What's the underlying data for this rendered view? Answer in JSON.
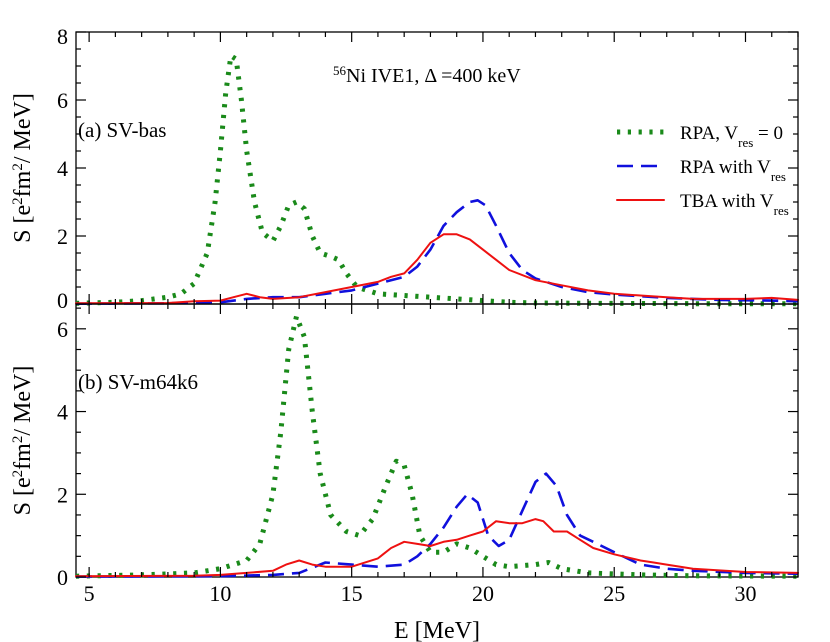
{
  "chart_data": [
    {
      "type": "line",
      "panel_label": "(a)  SV-bas",
      "title_super": "56",
      "title": "Ni  IVE1,  Δ =400 keV",
      "ylabel_parts": [
        "S [e",
        "2",
        "fm",
        "2",
        "/ MeV]"
      ],
      "xlim": [
        4.5,
        32
      ],
      "ylim": [
        0,
        8
      ],
      "yticks": [
        "0",
        "2",
        "4",
        "6",
        "8"
      ],
      "legend_position": "top-right",
      "legend": [
        {
          "base": "RPA, V",
          "sub": "res",
          "suffix": " = 0"
        },
        {
          "base": "RPA with V",
          "sub": "res",
          "suffix": ""
        },
        {
          "base": "TBA with V",
          "sub": "res",
          "suffix": ""
        }
      ],
      "series": [
        {
          "name": "RPA, Vres = 0",
          "color": "#1a8a1a",
          "style": "dotted",
          "points": [
            [
              4.5,
              0.02
            ],
            [
              6,
              0.05
            ],
            [
              7,
              0.1
            ],
            [
              8,
              0.2
            ],
            [
              8.5,
              0.3
            ],
            [
              9,
              0.6
            ],
            [
              9.5,
              1.5
            ],
            [
              9.8,
              3
            ],
            [
              10,
              4.5
            ],
            [
              10.2,
              6.2
            ],
            [
              10.4,
              7.3
            ],
            [
              10.6,
              7.2
            ],
            [
              10.8,
              6
            ],
            [
              11,
              4.5
            ],
            [
              11.3,
              3
            ],
            [
              11.6,
              2.1
            ],
            [
              12,
              1.85
            ],
            [
              12.3,
              2.3
            ],
            [
              12.6,
              2.9
            ],
            [
              12.9,
              3.0
            ],
            [
              13.2,
              2.8
            ],
            [
              13.5,
              2.0
            ],
            [
              13.8,
              1.5
            ],
            [
              14.2,
              1.4
            ],
            [
              14.5,
              1.3
            ],
            [
              14.8,
              0.9
            ],
            [
              15.2,
              0.5
            ],
            [
              15.6,
              0.4
            ],
            [
              16,
              0.3
            ],
            [
              17,
              0.25
            ],
            [
              18,
              0.2
            ],
            [
              19,
              0.15
            ],
            [
              20,
              0.1
            ],
            [
              21,
              0.05
            ],
            [
              22,
              0.03
            ],
            [
              24,
              0.02
            ],
            [
              28,
              0.01
            ],
            [
              32,
              0.01
            ]
          ]
        },
        {
          "name": "RPA with Vres",
          "color": "#1010dd",
          "style": "dashed",
          "points": [
            [
              4.5,
              0.01
            ],
            [
              8,
              0.02
            ],
            [
              10,
              0.05
            ],
            [
              11,
              0.15
            ],
            [
              12,
              0.2
            ],
            [
              13,
              0.2
            ],
            [
              14,
              0.3
            ],
            [
              15,
              0.4
            ],
            [
              16,
              0.6
            ],
            [
              17,
              0.8
            ],
            [
              17.5,
              1.1
            ],
            [
              18,
              1.6
            ],
            [
              18.5,
              2.3
            ],
            [
              19,
              2.7
            ],
            [
              19.5,
              3.0
            ],
            [
              19.8,
              3.05
            ],
            [
              20.1,
              2.9
            ],
            [
              20.5,
              2.3
            ],
            [
              21,
              1.5
            ],
            [
              21.5,
              1.0
            ],
            [
              22,
              0.75
            ],
            [
              23,
              0.5
            ],
            [
              24,
              0.35
            ],
            [
              25,
              0.28
            ],
            [
              27,
              0.18
            ],
            [
              29,
              0.12
            ],
            [
              31,
              0.1
            ],
            [
              32,
              0.08
            ]
          ]
        },
        {
          "name": "TBA with Vres",
          "color": "#ee1111",
          "style": "solid",
          "points": [
            [
              4.5,
              0.02
            ],
            [
              8,
              0.03
            ],
            [
              9,
              0.08
            ],
            [
              10,
              0.1
            ],
            [
              10.5,
              0.2
            ],
            [
              11,
              0.3
            ],
            [
              11.5,
              0.2
            ],
            [
              12,
              0.15
            ],
            [
              13,
              0.2
            ],
            [
              14,
              0.35
            ],
            [
              15,
              0.5
            ],
            [
              16,
              0.65
            ],
            [
              16.5,
              0.8
            ],
            [
              17,
              0.9
            ],
            [
              17.5,
              1.3
            ],
            [
              18,
              1.8
            ],
            [
              18.5,
              2.05
            ],
            [
              19,
              2.05
            ],
            [
              19.5,
              1.9
            ],
            [
              20,
              1.6
            ],
            [
              20.5,
              1.3
            ],
            [
              21,
              1.0
            ],
            [
              22,
              0.7
            ],
            [
              23,
              0.55
            ],
            [
              24,
              0.4
            ],
            [
              25,
              0.3
            ],
            [
              26,
              0.25
            ],
            [
              27,
              0.2
            ],
            [
              28,
              0.15
            ],
            [
              29,
              0.15
            ],
            [
              30,
              0.15
            ],
            [
              31,
              0.18
            ],
            [
              32,
              0.12
            ]
          ]
        }
      ]
    },
    {
      "type": "line",
      "panel_label": "(b)  SV-m64k6",
      "xlabel": "E [MeV]",
      "xlim": [
        4.5,
        32
      ],
      "ylim": [
        0,
        6.6
      ],
      "xticks": [
        "5",
        "10",
        "15",
        "20",
        "25",
        "30"
      ],
      "yticks": [
        "0",
        "2",
        "4",
        "6"
      ],
      "ylabel_parts": [
        "S [e",
        "2",
        "fm",
        "2",
        "/ MeV]"
      ],
      "series": [
        {
          "name": "RPA, Vres = 0",
          "color": "#1a8a1a",
          "style": "dotted",
          "points": [
            [
              4.5,
              0.02
            ],
            [
              7,
              0.05
            ],
            [
              9,
              0.1
            ],
            [
              10,
              0.2
            ],
            [
              11,
              0.4
            ],
            [
              11.5,
              0.8
            ],
            [
              12,
              2.0
            ],
            [
              12.3,
              3.5
            ],
            [
              12.6,
              5.5
            ],
            [
              12.9,
              6.3
            ],
            [
              13.2,
              5.8
            ],
            [
              13.5,
              4.0
            ],
            [
              13.8,
              2.5
            ],
            [
              14.2,
              1.5
            ],
            [
              14.8,
              1.1
            ],
            [
              15.3,
              1.0
            ],
            [
              15.8,
              1.4
            ],
            [
              16.3,
              2.2
            ],
            [
              16.7,
              2.8
            ],
            [
              17,
              2.7
            ],
            [
              17.3,
              2.0
            ],
            [
              17.6,
              1.0
            ],
            [
              18,
              0.6
            ],
            [
              18.5,
              0.6
            ],
            [
              19,
              0.8
            ],
            [
              19.5,
              0.7
            ],
            [
              20,
              0.5
            ],
            [
              20.5,
              0.3
            ],
            [
              21,
              0.25
            ],
            [
              22,
              0.3
            ],
            [
              22.5,
              0.35
            ],
            [
              23,
              0.2
            ],
            [
              24,
              0.1
            ],
            [
              26,
              0.05
            ],
            [
              28,
              0.03
            ],
            [
              32,
              0.02
            ]
          ]
        },
        {
          "name": "RPA with Vres",
          "color": "#1010dd",
          "style": "dashed",
          "points": [
            [
              4.5,
              0.01
            ],
            [
              10,
              0.02
            ],
            [
              12,
              0.05
            ],
            [
              13,
              0.1
            ],
            [
              14,
              0.35
            ],
            [
              15,
              0.3
            ],
            [
              16,
              0.25
            ],
            [
              17,
              0.3
            ],
            [
              17.5,
              0.5
            ],
            [
              18,
              0.8
            ],
            [
              18.5,
              1.2
            ],
            [
              19,
              1.7
            ],
            [
              19.4,
              2.0
            ],
            [
              19.8,
              1.8
            ],
            [
              20.2,
              1.0
            ],
            [
              20.6,
              0.75
            ],
            [
              21,
              0.9
            ],
            [
              21.5,
              1.6
            ],
            [
              22,
              2.3
            ],
            [
              22.4,
              2.5
            ],
            [
              22.8,
              2.2
            ],
            [
              23.2,
              1.5
            ],
            [
              23.7,
              1.0
            ],
            [
              24.2,
              0.85
            ],
            [
              25,
              0.6
            ],
            [
              26,
              0.3
            ],
            [
              27,
              0.2
            ],
            [
              28,
              0.15
            ],
            [
              30,
              0.1
            ],
            [
              32,
              0.08
            ]
          ]
        },
        {
          "name": "TBA with Vres",
          "color": "#ee1111",
          "style": "solid",
          "points": [
            [
              4.5,
              0.02
            ],
            [
              9,
              0.03
            ],
            [
              10,
              0.05
            ],
            [
              11,
              0.1
            ],
            [
              12,
              0.15
            ],
            [
              12.5,
              0.3
            ],
            [
              13,
              0.4
            ],
            [
              13.5,
              0.3
            ],
            [
              14,
              0.25
            ],
            [
              15,
              0.25
            ],
            [
              16,
              0.45
            ],
            [
              16.5,
              0.7
            ],
            [
              17,
              0.85
            ],
            [
              17.5,
              0.8
            ],
            [
              18,
              0.75
            ],
            [
              18.5,
              0.85
            ],
            [
              19,
              0.9
            ],
            [
              19.5,
              1.0
            ],
            [
              20,
              1.1
            ],
            [
              20.5,
              1.35
            ],
            [
              21,
              1.3
            ],
            [
              21.5,
              1.3
            ],
            [
              22,
              1.4
            ],
            [
              22.3,
              1.35
            ],
            [
              22.7,
              1.1
            ],
            [
              23.2,
              1.1
            ],
            [
              23.7,
              0.9
            ],
            [
              24.2,
              0.7
            ],
            [
              25,
              0.55
            ],
            [
              26,
              0.4
            ],
            [
              26.5,
              0.35
            ],
            [
              27,
              0.3
            ],
            [
              28,
              0.2
            ],
            [
              30,
              0.12
            ],
            [
              32,
              0.1
            ]
          ]
        }
      ]
    }
  ]
}
